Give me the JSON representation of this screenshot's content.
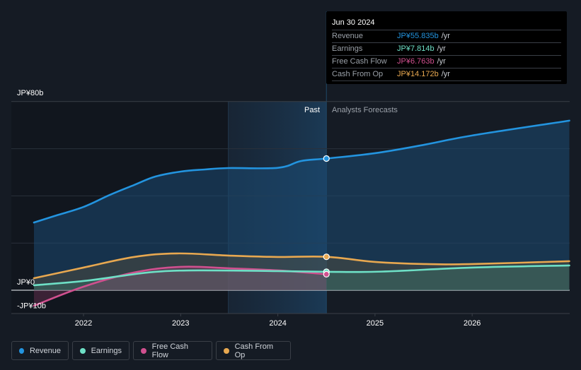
{
  "chart_data": {
    "type": "area",
    "title": "",
    "xlabel": "",
    "ylabel": "",
    "ylim": [
      -10,
      80
    ],
    "xlim": [
      2021.49,
      2027.0
    ],
    "y_tick_labels": [
      {
        "value": 80,
        "label": "JP¥80b"
      },
      {
        "value": 0,
        "label": "JP¥0"
      },
      {
        "value": -10,
        "label": "-JP¥10b"
      }
    ],
    "gridlines": [
      80,
      60,
      40,
      20,
      0
    ],
    "x_ticks": [
      {
        "value": 2022,
        "label": "2022"
      },
      {
        "value": 2023,
        "label": "2023"
      },
      {
        "value": 2024,
        "label": "2024"
      },
      {
        "value": 2025,
        "label": "2025"
      },
      {
        "value": 2026,
        "label": "2026"
      }
    ],
    "past_divider": 2024.5,
    "highlight_start": 2023.49,
    "past_label": "Past",
    "forecast_label": "Analysts Forecasts",
    "series": [
      {
        "name": "Revenue",
        "color": "#2394df",
        "points": [
          [
            2021.49,
            28.7
          ],
          [
            2021.72,
            31.7
          ],
          [
            2022.0,
            35.3
          ],
          [
            2022.27,
            40.4
          ],
          [
            2022.52,
            44.6
          ],
          [
            2022.74,
            48.2
          ],
          [
            2023.0,
            50.3
          ],
          [
            2023.25,
            51.2
          ],
          [
            2023.49,
            51.8
          ],
          [
            2024.0,
            51.9
          ],
          [
            2024.24,
            54.8
          ],
          [
            2024.5,
            55.835
          ],
          [
            2025.0,
            58.1
          ],
          [
            2025.51,
            61.7
          ],
          [
            2026.0,
            65.6
          ],
          [
            2027.0,
            71.9
          ]
        ]
      },
      {
        "name": "Earnings",
        "color": "#6ee0c6",
        "points": [
          [
            2021.49,
            2.1
          ],
          [
            2022.0,
            3.9
          ],
          [
            2022.38,
            6.0
          ],
          [
            2022.74,
            7.8
          ],
          [
            2023.18,
            8.4
          ],
          [
            2024.0,
            8.1
          ],
          [
            2024.5,
            7.814
          ],
          [
            2025.07,
            7.9
          ],
          [
            2026.0,
            9.6
          ],
          [
            2027.0,
            10.5
          ]
        ]
      },
      {
        "name": "Free Cash Flow",
        "color": "#d0508f",
        "points": [
          [
            2021.49,
            -6.6
          ],
          [
            2022.0,
            1.5
          ],
          [
            2022.52,
            7.5
          ],
          [
            2023.0,
            9.9
          ],
          [
            2023.49,
            9.3
          ],
          [
            2024.0,
            8.4
          ],
          [
            2024.5,
            6.763
          ]
        ]
      },
      {
        "name": "Cash From Op",
        "color": "#e8a850",
        "points": [
          [
            2021.49,
            5.1
          ],
          [
            2022.0,
            9.6
          ],
          [
            2022.52,
            14.1
          ],
          [
            2022.96,
            15.6
          ],
          [
            2023.49,
            14.7
          ],
          [
            2024.0,
            14.1
          ],
          [
            2024.5,
            14.172
          ],
          [
            2025.0,
            12.0
          ],
          [
            2025.51,
            11.1
          ],
          [
            2026.0,
            11.1
          ],
          [
            2027.0,
            12.3
          ]
        ]
      }
    ]
  },
  "tooltip": {
    "date": "Jun 30 2024",
    "rows": [
      {
        "label": "Revenue",
        "value": "JP¥55.835b",
        "unit": "/yr",
        "color": "#2394df"
      },
      {
        "label": "Earnings",
        "value": "JP¥7.814b",
        "unit": "/yr",
        "color": "#6ee0c6"
      },
      {
        "label": "Free Cash Flow",
        "value": "JP¥6.763b",
        "unit": "/yr",
        "color": "#d0508f"
      },
      {
        "label": "Cash From Op",
        "value": "JP¥14.172b",
        "unit": "/yr",
        "color": "#e8a850"
      }
    ]
  },
  "legend": [
    {
      "label": "Revenue",
      "color": "#2394df"
    },
    {
      "label": "Earnings",
      "color": "#6ee0c6"
    },
    {
      "label": "Free Cash Flow",
      "color": "#d0508f"
    },
    {
      "label": "Cash From Op",
      "color": "#e8a850"
    }
  ]
}
